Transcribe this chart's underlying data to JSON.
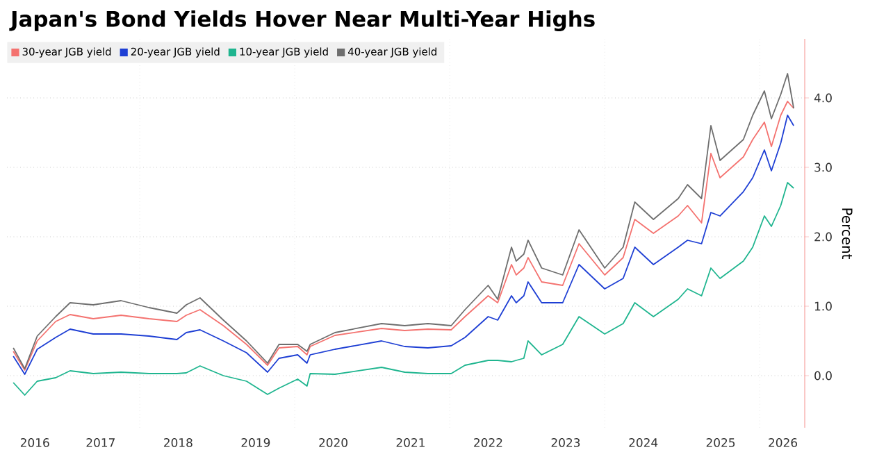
{
  "chart_data": {
    "type": "line",
    "title": "Japan's Bond Yields Hover Near Multi-Year Highs",
    "ylabel": "Percent",
    "x": [
      "2016-05-15",
      "2016-07-08",
      "2016-09-05",
      "2016-12-01",
      "2017-02-07",
      "2017-05-27",
      "2017-10-05",
      "2018-02-14",
      "2018-06-25",
      "2018-08-08",
      "2018-10-12",
      "2019-01-30",
      "2019-05-19",
      "2019-08-26",
      "2019-10-19",
      "2020-01-15",
      "2020-02-28",
      "2020-03-14",
      "2020-07-09",
      "2021-02-14",
      "2021-06-03",
      "2021-09-20",
      "2022-01-08",
      "2022-03-14",
      "2022-07-01",
      "2022-08-15",
      "2022-10-19",
      "2022-11-10",
      "2022-12-16",
      "2023-01-05",
      "2023-03-10",
      "2023-06-17",
      "2023-09-02",
      "2024-01-01",
      "2024-03-28",
      "2024-05-22",
      "2024-08-18",
      "2024-12-13",
      "2025-01-26",
      "2025-04-02",
      "2025-05-16",
      "2025-06-28",
      "2025-10-16",
      "2025-11-29",
      "2026-01-23",
      "2026-02-25",
      "2026-04-10",
      "2026-05-12",
      "2026-06-10"
    ],
    "series": [
      {
        "name": "30-year JGB yield",
        "color": "#f4726f",
        "values": [
          0.35,
          0.08,
          0.5,
          0.78,
          0.88,
          0.82,
          0.87,
          0.82,
          0.78,
          0.87,
          0.95,
          0.72,
          0.45,
          0.15,
          0.4,
          0.42,
          0.3,
          0.42,
          0.58,
          0.68,
          0.65,
          0.67,
          0.66,
          0.85,
          1.15,
          1.05,
          1.6,
          1.45,
          1.55,
          1.7,
          1.35,
          1.3,
          1.9,
          1.45,
          1.7,
          2.25,
          2.05,
          2.3,
          2.45,
          2.2,
          3.2,
          2.85,
          3.15,
          3.4,
          3.65,
          3.3,
          3.75,
          3.95,
          3.85
        ]
      },
      {
        "name": "20-year JGB yield",
        "color": "#1e3fd4",
        "values": [
          0.28,
          0.02,
          0.38,
          0.55,
          0.67,
          0.6,
          0.6,
          0.57,
          0.52,
          0.62,
          0.66,
          0.5,
          0.33,
          0.05,
          0.25,
          0.3,
          0.18,
          0.3,
          0.38,
          0.5,
          0.42,
          0.4,
          0.43,
          0.55,
          0.85,
          0.8,
          1.15,
          1.05,
          1.15,
          1.35,
          1.05,
          1.05,
          1.6,
          1.25,
          1.4,
          1.85,
          1.6,
          1.85,
          1.95,
          1.9,
          2.35,
          2.3,
          2.65,
          2.85,
          3.25,
          2.95,
          3.35,
          3.75,
          3.6
        ]
      },
      {
        "name": "10-year JGB yield",
        "color": "#1fb58f",
        "values": [
          -0.1,
          -0.28,
          -0.08,
          -0.03,
          0.07,
          0.03,
          0.05,
          0.03,
          0.03,
          0.04,
          0.14,
          0.0,
          -0.08,
          -0.27,
          -0.18,
          -0.05,
          -0.15,
          0.03,
          0.02,
          0.12,
          0.05,
          0.03,
          0.03,
          0.15,
          0.22,
          0.22,
          0.2,
          0.22,
          0.25,
          0.5,
          0.3,
          0.45,
          0.85,
          0.6,
          0.75,
          1.05,
          0.85,
          1.1,
          1.25,
          1.15,
          1.55,
          1.4,
          1.65,
          1.85,
          2.3,
          2.15,
          2.45,
          2.78,
          2.7
        ]
      },
      {
        "name": "40-year JGB yield",
        "color": "#6e6e6e",
        "values": [
          0.4,
          0.1,
          0.57,
          0.85,
          1.05,
          1.02,
          1.08,
          0.98,
          0.9,
          1.02,
          1.12,
          0.8,
          0.5,
          0.18,
          0.45,
          0.45,
          0.35,
          0.45,
          0.62,
          0.75,
          0.72,
          0.75,
          0.72,
          0.95,
          1.3,
          1.1,
          1.85,
          1.65,
          1.75,
          1.95,
          1.55,
          1.45,
          2.1,
          1.55,
          1.85,
          2.5,
          2.25,
          2.55,
          2.75,
          2.55,
          3.6,
          3.1,
          3.4,
          3.75,
          4.1,
          3.7,
          4.05,
          4.35,
          3.85
        ]
      }
    ],
    "xlim": [
      "2016-04-15",
      "2026-08-01"
    ],
    "xticks": [
      {
        "value": "2016-08-25",
        "label": "2016"
      },
      {
        "value": "2017-07-01",
        "label": "2017"
      },
      {
        "value": "2018-01-01",
        "label": null
      },
      {
        "value": "2018-07-01",
        "label": "2018"
      },
      {
        "value": "2019-07-01",
        "label": "2019"
      },
      {
        "value": "2020-01-01",
        "label": null
      },
      {
        "value": "2020-07-01",
        "label": "2020"
      },
      {
        "value": "2021-07-01",
        "label": "2021"
      },
      {
        "value": "2022-01-01",
        "label": null
      },
      {
        "value": "2022-07-01",
        "label": "2022"
      },
      {
        "value": "2023-07-01",
        "label": "2023"
      },
      {
        "value": "2024-01-01",
        "label": null
      },
      {
        "value": "2024-07-01",
        "label": "2024"
      },
      {
        "value": "2025-07-01",
        "label": "2025"
      },
      {
        "value": "2026-01-01",
        "label": null
      },
      {
        "value": "2026-04-20",
        "label": "2026"
      }
    ],
    "ylim": [
      -0.75,
      4.85
    ],
    "yticks": [
      {
        "value": 0,
        "label": "0.0"
      },
      {
        "value": 1,
        "label": "1.0"
      },
      {
        "value": 2,
        "label": "2.0"
      },
      {
        "value": 3,
        "label": "3.0"
      },
      {
        "value": 4,
        "label": "4.0"
      }
    ],
    "grid": true,
    "legend": "top left",
    "marker": "none",
    "line_style": "solid"
  }
}
